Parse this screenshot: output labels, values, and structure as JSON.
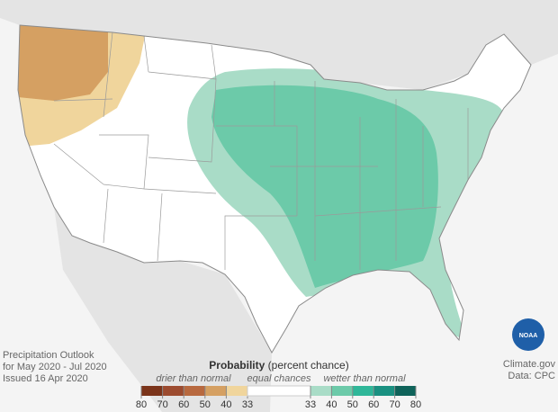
{
  "title": "Probability",
  "title_note": "(percent chance)",
  "legend": {
    "drier_label": "drier than normal",
    "equal_label": "equal chances",
    "wetter_label": "wetter than normal",
    "drier_ticks": [
      80,
      70,
      60,
      50,
      40,
      33
    ],
    "wetter_ticks": [
      33,
      40,
      50,
      60,
      70,
      80
    ],
    "drier_colors": [
      "#7b341a",
      "#9c4b2f",
      "#b8693f",
      "#d5a062",
      "#f0d59c"
    ],
    "wetter_colors": [
      "#a9dcc7",
      "#6ccaa9",
      "#2fb799",
      "#1a9181",
      "#0f635a"
    ]
  },
  "caption": [
    "Precipitation Outlook",
    "for May 2020 - Jul 2020",
    "Issued 16 Apr 2020"
  ],
  "credits": [
    "Climate.gov",
    "Data: CPC"
  ],
  "logo": "NOAA"
}
